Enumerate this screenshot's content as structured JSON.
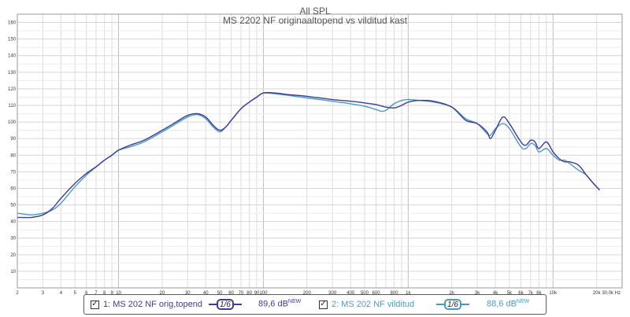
{
  "chart_data": {
    "type": "line",
    "title": "All SPL",
    "subtitle": "MS 2202 NF originaaltopend vs vilditud kast",
    "xscale": "log",
    "xlim": [
      2,
      30000
    ],
    "ylim": [
      0,
      165
    ],
    "x_ticks": [
      {
        "v": 2,
        "label": "2"
      },
      {
        "v": 3,
        "label": "3"
      },
      {
        "v": 4,
        "label": "4"
      },
      {
        "v": 5,
        "label": "5"
      },
      {
        "v": 6,
        "label": "6"
      },
      {
        "v": 7,
        "label": "7"
      },
      {
        "v": 8,
        "label": "8"
      },
      {
        "v": 9,
        "label": "9"
      },
      {
        "v": 10,
        "label": "10"
      },
      {
        "v": 20,
        "label": "20"
      },
      {
        "v": 30,
        "label": "30"
      },
      {
        "v": 40,
        "label": "40"
      },
      {
        "v": 50,
        "label": "50"
      },
      {
        "v": 60,
        "label": "60"
      },
      {
        "v": 70,
        "label": "70"
      },
      {
        "v": 80,
        "label": "80"
      },
      {
        "v": 90,
        "label": "90"
      },
      {
        "v": 100,
        "label": "100"
      },
      {
        "v": 200,
        "label": "200"
      },
      {
        "v": 300,
        "label": "300"
      },
      {
        "v": 400,
        "label": "400"
      },
      {
        "v": 500,
        "label": "500"
      },
      {
        "v": 600,
        "label": "600"
      },
      {
        "v": 800,
        "label": "800"
      },
      {
        "v": 1000,
        "label": "1k"
      },
      {
        "v": 2000,
        "label": "2k"
      },
      {
        "v": 3000,
        "label": "3k"
      },
      {
        "v": 4000,
        "label": "4k"
      },
      {
        "v": 5000,
        "label": "5k"
      },
      {
        "v": 6000,
        "label": "6k"
      },
      {
        "v": 7000,
        "label": "7k"
      },
      {
        "v": 8000,
        "label": "8k"
      },
      {
        "v": 10000,
        "label": "10k"
      },
      {
        "v": 20000,
        "label": "20k"
      },
      {
        "v": 30000,
        "label": "30,0k Hz"
      }
    ],
    "y_ticks": [
      10,
      20,
      30,
      40,
      50,
      60,
      70,
      80,
      90,
      100,
      110,
      120,
      130,
      140,
      150,
      160
    ],
    "grid": true,
    "series": [
      {
        "name": "1: MS 202 NF orig,topend",
        "color": "#3c3c9a",
        "points": [
          [
            2,
            42.5
          ],
          [
            2.5,
            42.5
          ],
          [
            3,
            44
          ],
          [
            3.5,
            48
          ],
          [
            4,
            54
          ],
          [
            5,
            63
          ],
          [
            6,
            69
          ],
          [
            7,
            73
          ],
          [
            8,
            77
          ],
          [
            9,
            80
          ],
          [
            10,
            83
          ],
          [
            12,
            86
          ],
          [
            15,
            89
          ],
          [
            20,
            95
          ],
          [
            25,
            100
          ],
          [
            30,
            104
          ],
          [
            35,
            105
          ],
          [
            40,
            103
          ],
          [
            45,
            98
          ],
          [
            50,
            95
          ],
          [
            55,
            97
          ],
          [
            60,
            101
          ],
          [
            70,
            108
          ],
          [
            80,
            112
          ],
          [
            90,
            115
          ],
          [
            100,
            117.5
          ],
          [
            120,
            117.5
          ],
          [
            150,
            116.5
          ],
          [
            200,
            115.5
          ],
          [
            300,
            113.5
          ],
          [
            400,
            112.5
          ],
          [
            500,
            111.5
          ],
          [
            600,
            110.5
          ],
          [
            700,
            109
          ],
          [
            800,
            108.5
          ],
          [
            900,
            110
          ],
          [
            1000,
            112
          ],
          [
            1200,
            113
          ],
          [
            1500,
            112.5
          ],
          [
            2000,
            109
          ],
          [
            2500,
            101
          ],
          [
            3000,
            99
          ],
          [
            3500,
            94
          ],
          [
            3700,
            90
          ],
          [
            4000,
            95
          ],
          [
            4500,
            103
          ],
          [
            5000,
            99
          ],
          [
            6000,
            88
          ],
          [
            6500,
            86
          ],
          [
            7000,
            89
          ],
          [
            7500,
            88
          ],
          [
            8000,
            84
          ],
          [
            9000,
            88
          ],
          [
            10000,
            82
          ],
          [
            11000,
            78
          ],
          [
            12000,
            76
          ],
          [
            13000,
            76
          ],
          [
            15000,
            74
          ],
          [
            17000,
            68
          ],
          [
            19000,
            63
          ],
          [
            21000,
            59
          ]
        ]
      },
      {
        "name": "2: MS 202 NF vilditud",
        "color": "#4a9ac0",
        "points": [
          [
            2,
            45
          ],
          [
            2.5,
            44
          ],
          [
            3,
            45
          ],
          [
            3.5,
            47
          ],
          [
            4,
            51
          ],
          [
            5,
            61
          ],
          [
            6,
            68
          ],
          [
            7,
            73
          ],
          [
            8,
            77
          ],
          [
            9,
            80
          ],
          [
            10,
            83
          ],
          [
            12,
            85
          ],
          [
            15,
            88
          ],
          [
            20,
            94
          ],
          [
            25,
            99
          ],
          [
            30,
            103
          ],
          [
            35,
            104.5
          ],
          [
            40,
            102
          ],
          [
            45,
            97
          ],
          [
            50,
            94
          ],
          [
            55,
            97
          ],
          [
            60,
            101
          ],
          [
            70,
            108
          ],
          [
            80,
            112
          ],
          [
            90,
            115
          ],
          [
            100,
            117.5
          ],
          [
            120,
            117
          ],
          [
            150,
            116
          ],
          [
            200,
            114.5
          ],
          [
            300,
            112.5
          ],
          [
            400,
            111
          ],
          [
            500,
            109.5
          ],
          [
            600,
            107.5
          ],
          [
            650,
            106.5
          ],
          [
            700,
            107
          ],
          [
            800,
            111
          ],
          [
            900,
            113
          ],
          [
            1000,
            113.5
          ],
          [
            1200,
            113
          ],
          [
            1500,
            112
          ],
          [
            2000,
            109
          ],
          [
            2500,
            102
          ],
          [
            3000,
            99
          ],
          [
            3500,
            93
          ],
          [
            3700,
            92
          ],
          [
            4000,
            96
          ],
          [
            4500,
            99
          ],
          [
            5000,
            96
          ],
          [
            6000,
            85
          ],
          [
            6500,
            84
          ],
          [
            7000,
            87
          ],
          [
            7500,
            86
          ],
          [
            8000,
            82
          ],
          [
            9000,
            84
          ],
          [
            10000,
            80
          ],
          [
            11000,
            77
          ],
          [
            12000,
            77
          ],
          [
            13000,
            75
          ],
          [
            15000,
            71
          ],
          [
            17000,
            68
          ],
          [
            19000,
            63
          ],
          [
            21000,
            59
          ]
        ]
      }
    ]
  },
  "legend": {
    "items": [
      {
        "checked": "✓",
        "label": "1: MS 202 NF orig,topend",
        "smoothing": "1/6",
        "level": "89,6 dB",
        "badge": "NEW"
      },
      {
        "checked": "✓",
        "label": "2: MS 202 NF vilditud",
        "smoothing": "1/6",
        "level": "88,6 dB",
        "badge": "NEW"
      }
    ]
  }
}
